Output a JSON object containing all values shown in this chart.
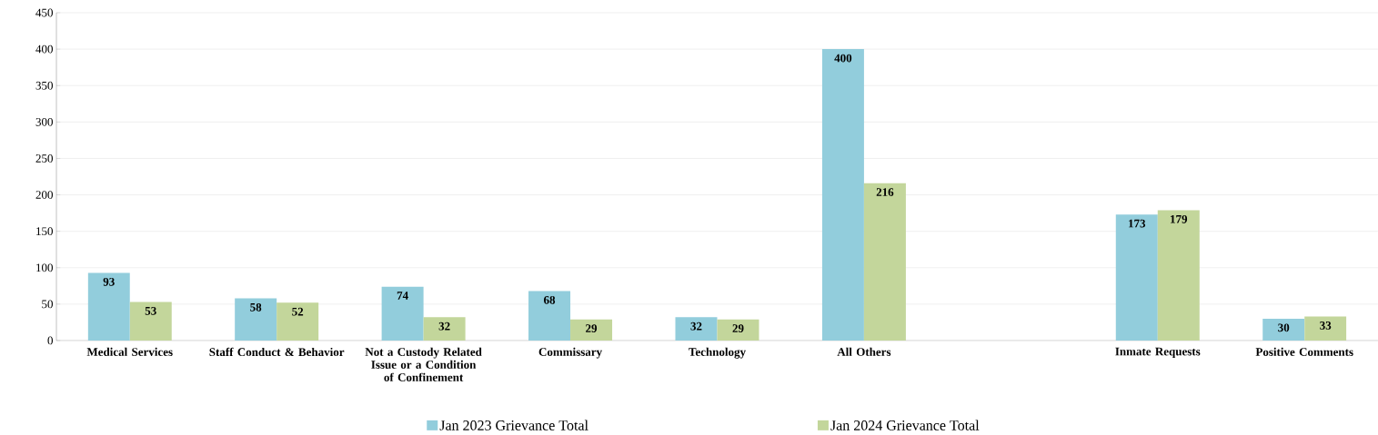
{
  "chart_data": {
    "type": "bar",
    "categories": [
      "Medical Services",
      "Staff Conduct & Behavior",
      "Not a Custody Related Issue or a Condition of Confinement",
      "Commissary",
      "Technology",
      "All Others",
      null,
      "Inmate Requests",
      "Positive Comments"
    ],
    "series": [
      {
        "name": "Jan 2023 Grievance Total",
        "color": "#92cddc",
        "values": [
          93,
          58,
          74,
          68,
          32,
          400,
          null,
          173,
          30
        ]
      },
      {
        "name": "Jan 2024 Grievance Total",
        "color": "#c3d69b",
        "values": [
          53,
          52,
          32,
          29,
          29,
          216,
          null,
          179,
          33
        ]
      }
    ],
    "ylim": [
      0,
      450
    ],
    "yticks": [
      0,
      50,
      100,
      150,
      200,
      250,
      300,
      350,
      400,
      450
    ],
    "grid": "y",
    "legend": "bottom",
    "data_labels": true
  }
}
